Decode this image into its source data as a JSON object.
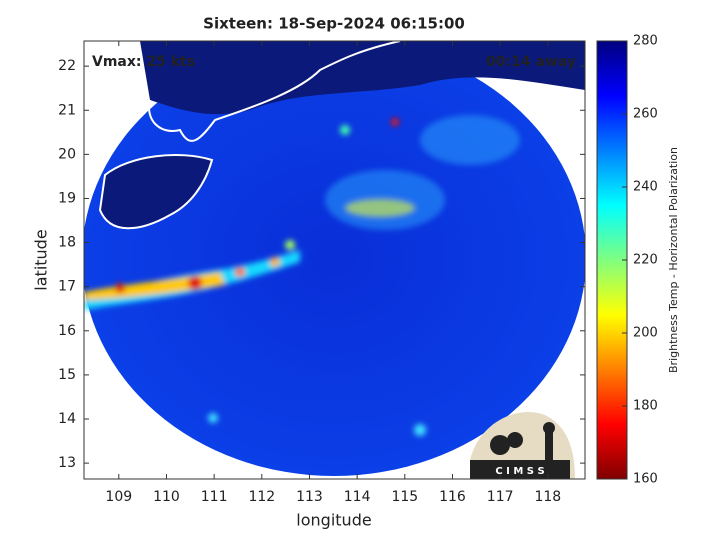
{
  "chart_data": {
    "type": "map",
    "title": "Sixteen: 18-Sep-2024 06:15:00",
    "annotations": [
      "Vmax: 25 kts",
      "00:14 away"
    ],
    "xlabel": "longitude",
    "ylabel": "latitude",
    "xlim": [
      108.27,
      118.78
    ],
    "ylim": [
      12.64,
      22.57
    ],
    "xticks": [
      109,
      110,
      111,
      112,
      113,
      114,
      115,
      116,
      117,
      118
    ],
    "yticks": [
      13,
      14,
      15,
      16,
      17,
      18,
      19,
      20,
      21,
      22
    ],
    "colorbar": {
      "label": "Brightness Temp - Horizontal Polarization",
      "lim": [
        160,
        280
      ],
      "ticks": [
        160,
        180,
        200,
        220,
        240,
        260,
        280
      ]
    }
  },
  "logo": {
    "text": "C I M S S"
  }
}
